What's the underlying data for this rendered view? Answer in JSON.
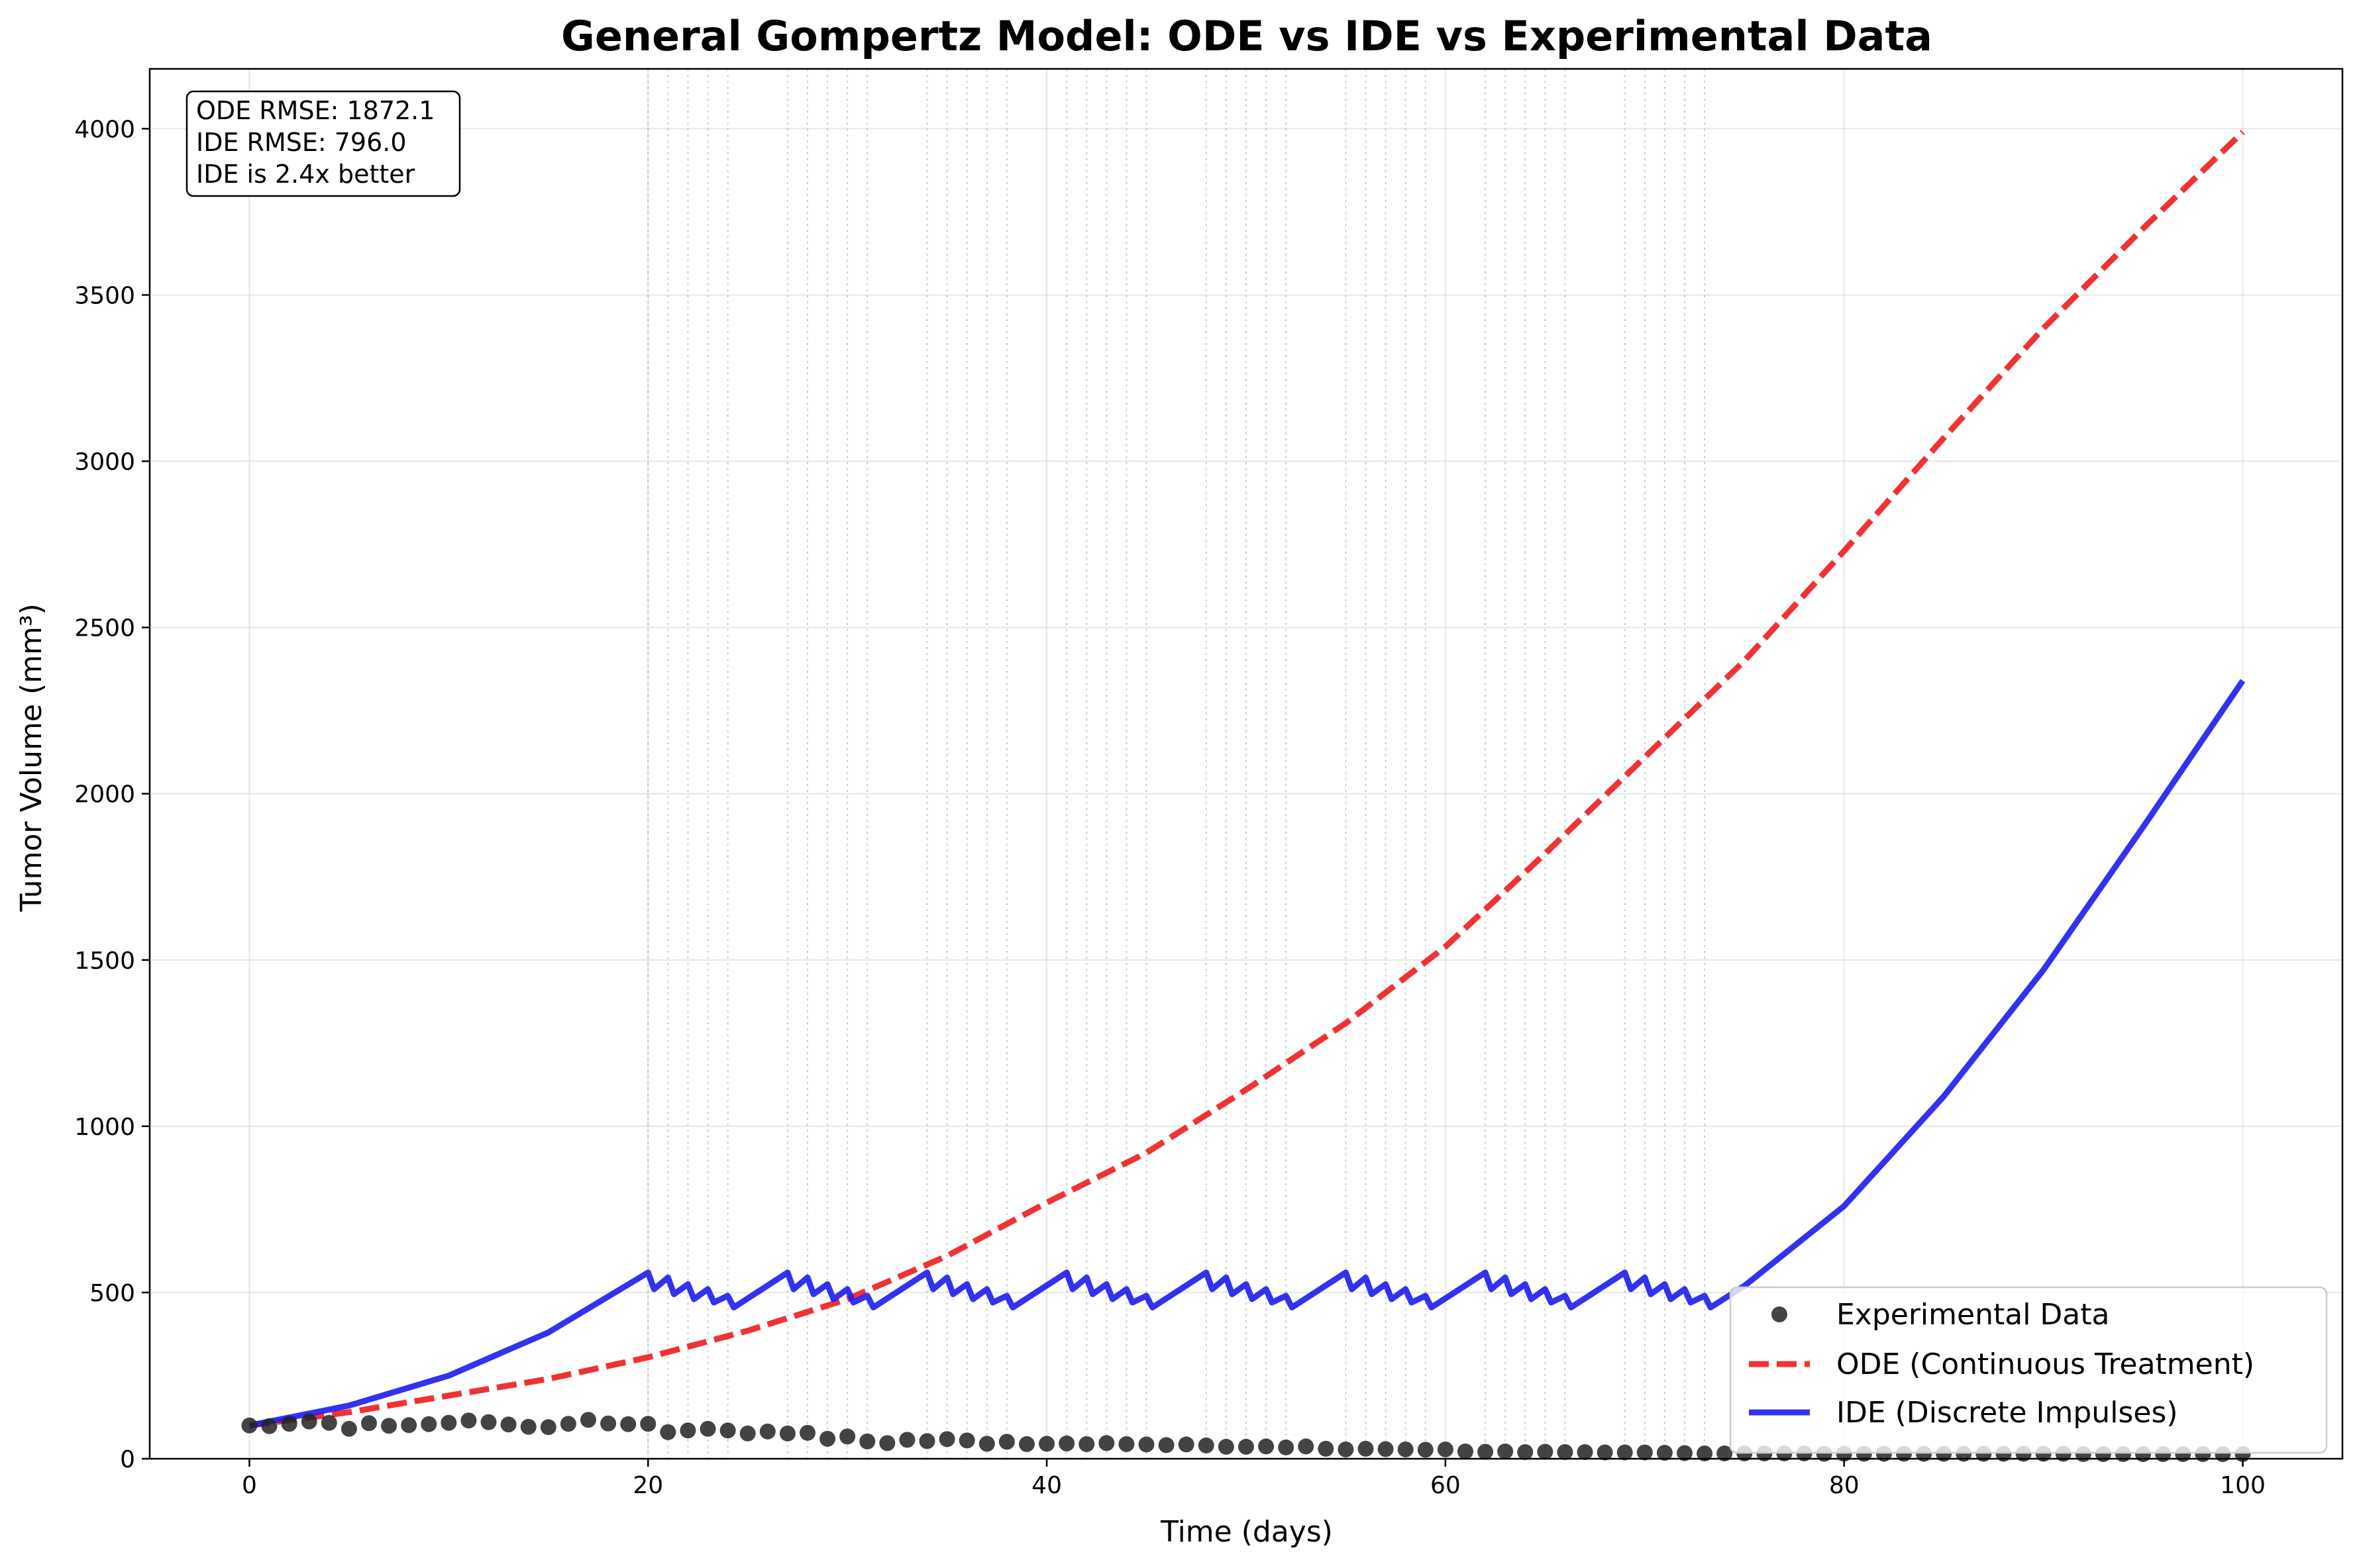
{
  "chart_data": {
    "type": "line",
    "title": "General Gompertz Model: ODE vs IDE vs Experimental Data",
    "xlabel": "Time (days)",
    "ylabel": "Tumor Volume (mm³)",
    "xlim": [
      -5,
      105
    ],
    "ylim": [
      0,
      4180
    ],
    "xticks": [
      0,
      20,
      40,
      60,
      80,
      100
    ],
    "yticks": [
      0,
      500,
      1000,
      1500,
      2000,
      2500,
      3000,
      3500,
      4000
    ],
    "grid": true,
    "legend_position": "lower right",
    "annotation": [
      "ODE RMSE: 1872.1",
      "IDE RMSE: 796.0",
      "IDE is 2.4x better"
    ],
    "dose_times": [
      20,
      21,
      22,
      23,
      24,
      27,
      28,
      29,
      30,
      31,
      34,
      35,
      36,
      37,
      38,
      41,
      42,
      43,
      44,
      45,
      48,
      49,
      50,
      51,
      52,
      55,
      56,
      57,
      58,
      59,
      62,
      63,
      64,
      65,
      66,
      69,
      70,
      71,
      72,
      73
    ],
    "series": [
      {
        "name": "Experimental Data",
        "kind": "scatter",
        "color": "#222222",
        "x": [
          0,
          1,
          2,
          3,
          4,
          5,
          6,
          7,
          8,
          9,
          10,
          11,
          12,
          13,
          14,
          15,
          16,
          17,
          18,
          19,
          20,
          21,
          22,
          23,
          24,
          25,
          26,
          27,
          28,
          29,
          30,
          31,
          32,
          33,
          34,
          35,
          36,
          37,
          38,
          39,
          40,
          41,
          42,
          43,
          44,
          45,
          46,
          47,
          48,
          49,
          50,
          51,
          52,
          53,
          54,
          55,
          56,
          57,
          58,
          59,
          60,
          61,
          62,
          63,
          64,
          65,
          66,
          67,
          68,
          69,
          70,
          71,
          72,
          73,
          74,
          75,
          76,
          77,
          78,
          79,
          80,
          81,
          82,
          83,
          84,
          85,
          86,
          87,
          88,
          89,
          90,
          91,
          92,
          93,
          94,
          95,
          96,
          97,
          98,
          99,
          100
        ],
        "y": [
          100,
          98,
          105,
          112,
          108,
          90,
          107,
          99,
          101,
          104,
          108,
          115,
          110,
          103,
          96,
          95,
          105,
          117,
          106,
          104,
          105,
          80,
          85,
          90,
          85,
          76,
          82,
          76,
          78,
          60,
          67,
          52,
          47,
          57,
          53,
          59,
          55,
          45,
          51,
          44,
          45,
          46,
          44,
          47,
          44,
          43,
          41,
          43,
          40,
          36,
          36,
          37,
          34,
          37,
          30,
          28,
          30,
          29,
          28,
          27,
          28,
          22,
          21,
          22,
          20,
          21,
          20,
          20,
          19,
          19,
          19,
          18,
          17,
          16,
          16,
          16,
          16,
          16,
          16,
          15,
          15,
          15,
          15,
          15,
          15,
          15,
          15,
          15,
          15,
          15,
          15,
          15,
          14,
          14,
          14,
          14,
          14,
          14,
          14,
          14,
          14
        ]
      },
      {
        "name": "ODE (Continuous Treatment)",
        "kind": "line",
        "style": "dashed",
        "color": "#ee1c1c",
        "x": [
          0,
          5,
          10,
          15,
          20,
          25,
          30,
          35,
          40,
          45,
          50,
          55,
          60,
          65,
          70,
          75,
          80,
          85,
          90,
          95,
          100
        ],
        "y": [
          100,
          140,
          190,
          240,
          305,
          385,
          480,
          610,
          770,
          920,
          1110,
          1310,
          1540,
          1820,
          2110,
          2400,
          2730,
          3070,
          3400,
          3700,
          3990
        ]
      },
      {
        "name": "IDE (Discrete Impulses)",
        "kind": "line",
        "style": "solid",
        "color": "#1c1cee",
        "x": [
          0,
          5,
          10,
          15,
          20,
          20.3,
          21,
          21.3,
          22,
          22.3,
          23,
          23.3,
          24,
          24.3,
          27,
          27.3,
          28,
          28.3,
          29,
          29.3,
          30,
          30.3,
          31,
          31.3,
          34,
          34.3,
          35,
          35.3,
          36,
          36.3,
          37,
          37.3,
          38,
          38.3,
          41,
          41.3,
          42,
          42.3,
          43,
          43.3,
          44,
          44.3,
          45,
          45.3,
          48,
          48.3,
          49,
          49.3,
          50,
          50.3,
          51,
          51.3,
          52,
          52.3,
          55,
          55.3,
          56,
          56.3,
          57,
          57.3,
          58,
          58.3,
          59,
          59.3,
          62,
          62.3,
          63,
          63.3,
          64,
          64.3,
          65,
          65.3,
          66,
          66.3,
          69,
          69.3,
          70,
          70.3,
          71,
          71.3,
          72,
          72.3,
          73,
          73.3,
          75,
          80,
          85,
          90,
          95,
          100
        ],
        "y": [
          100,
          160,
          250,
          380,
          560,
          510,
          545,
          495,
          525,
          480,
          510,
          470,
          490,
          455,
          560,
          510,
          545,
          495,
          525,
          480,
          510,
          470,
          490,
          455,
          560,
          510,
          545,
          495,
          525,
          480,
          510,
          470,
          490,
          455,
          560,
          510,
          545,
          495,
          525,
          480,
          510,
          470,
          490,
          455,
          560,
          510,
          545,
          495,
          525,
          480,
          510,
          470,
          490,
          455,
          560,
          510,
          545,
          495,
          525,
          480,
          510,
          470,
          490,
          455,
          560,
          510,
          545,
          495,
          525,
          480,
          510,
          470,
          490,
          455,
          560,
          510,
          545,
          495,
          525,
          480,
          510,
          470,
          490,
          455,
          520,
          760,
          1090,
          1470,
          1900,
          2340
        ]
      }
    ]
  }
}
